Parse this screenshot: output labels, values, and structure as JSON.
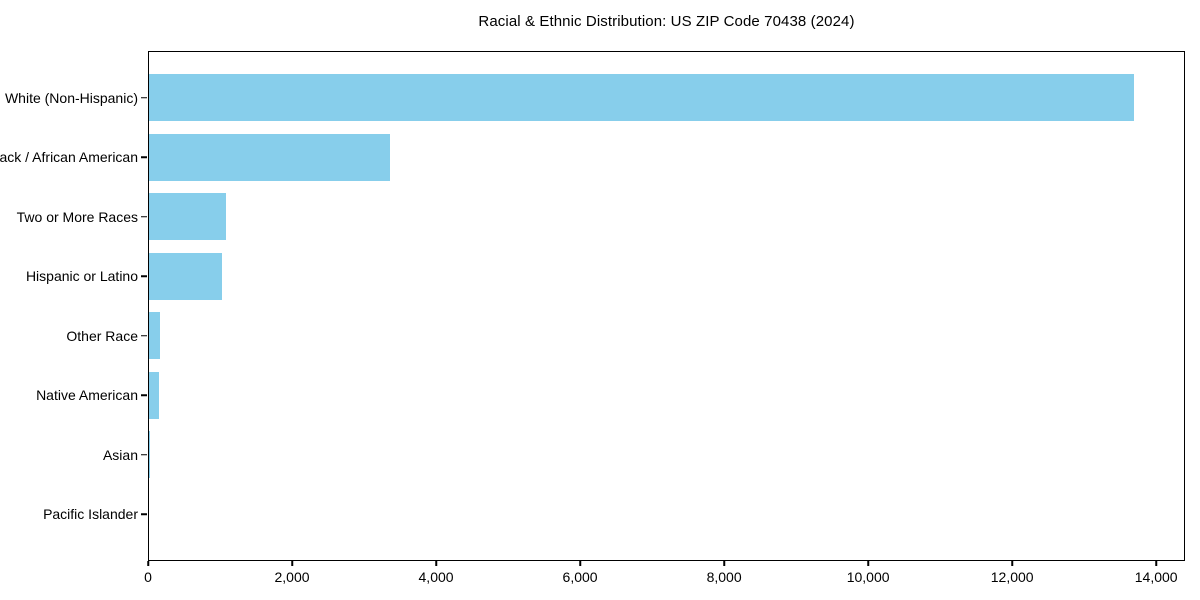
{
  "title": "Racial & Ethnic Distribution: US ZIP Code 70438 (2024)",
  "chart_data": {
    "type": "bar",
    "orientation": "horizontal",
    "title": "Racial & Ethnic Distribution: US ZIP Code 70438 (2024)",
    "categories": [
      "White (Non-Hispanic)",
      "Black / African American",
      "Two or More Races",
      "Hispanic or Latino",
      "Other Race",
      "Native American",
      "Asian",
      "Pacific Islander"
    ],
    "values": [
      13700,
      3350,
      1070,
      1020,
      150,
      140,
      5,
      0
    ],
    "xlabel": "",
    "ylabel": "",
    "xlim": [
      0,
      14400
    ],
    "xticks": [
      0,
      2000,
      4000,
      6000,
      8000,
      10000,
      12000,
      14000
    ],
    "xtick_labels": [
      "0",
      "2,000",
      "4,000",
      "6,000",
      "8,000",
      "10,000",
      "12,000",
      "14,000"
    ],
    "bar_color": "#87CEEB",
    "axis_color": "#000000",
    "grid": false,
    "legend": null
  }
}
